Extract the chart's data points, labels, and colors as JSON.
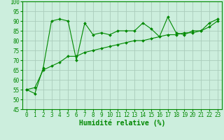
{
  "xlabel": "Humidité relative (%)",
  "bg_color": "#cceedd",
  "grid_color": "#aaccbb",
  "line_color": "#008800",
  "x_values": [
    0,
    1,
    2,
    3,
    4,
    5,
    6,
    7,
    8,
    9,
    10,
    11,
    12,
    13,
    14,
    15,
    16,
    17,
    18,
    19,
    20,
    21,
    22,
    23
  ],
  "y_jagged": [
    55,
    53,
    66,
    90,
    91,
    90,
    70,
    89,
    83,
    84,
    83,
    85,
    85,
    85,
    89,
    86,
    82,
    92,
    84,
    83,
    85,
    85,
    89,
    91
  ],
  "y_trend": [
    55,
    56,
    65,
    67,
    69,
    72,
    72,
    74,
    75,
    76,
    77,
    78,
    79,
    80,
    80,
    81,
    82,
    83,
    83,
    84,
    84,
    85,
    87,
    90
  ],
  "ylim": [
    45,
    100
  ],
  "yticks": [
    45,
    50,
    55,
    60,
    65,
    70,
    75,
    80,
    85,
    90,
    95,
    100
  ],
  "xlim": [
    -0.5,
    23.5
  ],
  "tick_fontsize": 5.5,
  "xlabel_fontsize": 7.0
}
